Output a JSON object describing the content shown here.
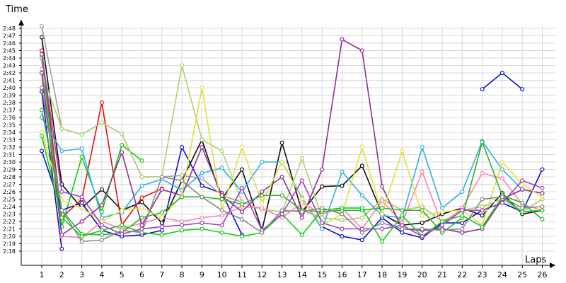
{
  "chart_data": {
    "type": "line",
    "xlabel": "Laps",
    "ylabel": "Time",
    "x": [
      1,
      2,
      3,
      4,
      5,
      6,
      7,
      8,
      9,
      10,
      11,
      12,
      13,
      14,
      15,
      16,
      17,
      18,
      19,
      20,
      21,
      22,
      23,
      24,
      25,
      26
    ],
    "ylim": [
      137,
      169
    ],
    "y_ticks": [
      "2:18",
      "2:19",
      "2:20",
      "2:21",
      "2:22",
      "2:23",
      "2:24",
      "2:25",
      "2:26",
      "2:27",
      "2:28",
      "2:29",
      "2:30",
      "2:31",
      "2:32",
      "2:33",
      "2:34",
      "2:35",
      "2:36",
      "2:37",
      "2:38",
      "2:39",
      "2:40",
      "2:41",
      "2:42",
      "2:43",
      "2:44",
      "2:45",
      "2:46",
      "2:47",
      "2:48"
    ],
    "y_tick_values": [
      138,
      139,
      140,
      141,
      142,
      143,
      144,
      145,
      146,
      147,
      148,
      149,
      150,
      151,
      152,
      153,
      154,
      155,
      156,
      157,
      158,
      159,
      160,
      161,
      162,
      163,
      164,
      165,
      166,
      167,
      168
    ],
    "grid": true,
    "legend": "none",
    "series": [
      {
        "color": "#1010c8",
        "values": [
          159.5,
          138.3,
          null,
          null,
          null,
          null,
          null,
          null,
          null,
          null,
          null,
          null,
          null,
          null,
          null,
          null,
          null,
          null,
          null,
          null,
          null,
          null,
          159.8,
          162.0,
          159.8,
          null
        ]
      },
      {
        "color": "#101010",
        "values": [
          166.8,
          147.0,
          143.8,
          146.3,
          143.5,
          144.6,
          141.8,
          147.5,
          153.0,
          145.0,
          149.0,
          140.8,
          152.6,
          143.3,
          146.7,
          146.8,
          149.5,
          143.0,
          141.5,
          141.8,
          143.0,
          143.8,
          142.8,
          145.8,
          143.0,
          143.5
        ]
      },
      {
        "color": "#e01010",
        "values": [
          165.0,
          142.5,
          145.0,
          158.0,
          141.5,
          145.2,
          146.4,
          null,
          null,
          null,
          null,
          null,
          null,
          null,
          null,
          null,
          null,
          null,
          null,
          null,
          null,
          null,
          null,
          null,
          null,
          null
        ]
      },
      {
        "color": "#10c810",
        "values": [
          164.0,
          141.3,
          150.7,
          143.3,
          152.3,
          150.2,
          null,
          null,
          null,
          null,
          null,
          null,
          null,
          null,
          null,
          null,
          null,
          null,
          null,
          null,
          null,
          null,
          null,
          null,
          null,
          null
        ]
      },
      {
        "color": "#1010c8",
        "values": [
          151.5,
          143.5,
          144.5,
          140.8,
          140.0,
          140.2,
          140.8,
          152.0,
          146.8,
          145.8,
          140.2,
          null,
          null,
          null,
          141.3,
          140.0,
          139.5,
          142.5,
          140.5,
          139.8,
          141.8,
          141.8,
          143.5,
          144.5,
          143.3,
          149.0
        ]
      },
      {
        "color": "#a0a0a0",
        "values": [
          168.3,
          154.5,
          153.7,
          155.3,
          153.8,
          148.0,
          148.0,
          148.2,
          147.8,
          145.5,
          144.6,
          143.6,
          143.3,
          143.5,
          142.5,
          142.2,
          142.5,
          145.0,
          143.5,
          144.0,
          142.0,
          143.5,
          144.0,
          145.0,
          143.3,
          145.0
        ]
      },
      {
        "color": "#b0d070",
        "values": [
          162.0,
          154.5,
          153.7,
          155.3,
          153.8,
          148.0,
          148.0,
          163.0,
          153.0,
          151.5,
          144.6,
          143.6,
          143.3,
          150.5,
          142.5,
          142.2,
          142.5,
          145.0,
          143.5,
          144.0,
          142.0,
          143.5,
          144.0,
          145.0,
          143.3,
          145.0
        ]
      },
      {
        "color": "#30b0e0",
        "values": [
          156.0,
          151.5,
          151.8,
          142.5,
          143.2,
          146.8,
          147.7,
          146.2,
          148.5,
          149.2,
          146.0,
          150.0,
          150.0,
          145.2,
          141.0,
          148.7,
          145.5,
          142.8,
          142.5,
          152.0,
          143.8,
          146.0,
          152.8,
          149.0,
          146.3,
          145.8
        ]
      },
      {
        "color": "#ff80b0",
        "values": [
          162.5,
          140.0,
          139.8,
          142.0,
          141.0,
          141.8,
          142.5,
          142.0,
          142.5,
          142.8,
          144.0,
          143.8,
          142.5,
          144.5,
          143.0,
          143.8,
          141.0,
          144.8,
          141.8,
          148.7,
          141.5,
          143.8,
          148.5,
          147.8,
          144.3,
          143.5
        ]
      },
      {
        "color": "#903090",
        "values": [
          162.0,
          140.2,
          142.0,
          144.2,
          151.3,
          141.5,
          146.3,
          145.5,
          152.0,
          145.5,
          143.3,
          146.0,
          148.0,
          142.5,
          149.0,
          166.5,
          165.0,
          146.7,
          141.0,
          140.8,
          141.0,
          140.5,
          141.0,
          145.0,
          146.3,
          145.8
        ]
      },
      {
        "color": "#e0e040",
        "values": [
          154.0,
          144.8,
          143.8,
          142.0,
          143.5,
          143.8,
          142.5,
          145.5,
          160.0,
          143.5,
          152.0,
          144.5,
          150.0,
          145.0,
          141.5,
          143.0,
          152.0,
          143.0,
          151.5,
          142.8,
          143.3,
          143.5,
          141.5,
          150.0,
          147.0,
          145.3
        ]
      },
      {
        "color": "#30b030",
        "values": [
          157.0,
          143.5,
          140.3,
          140.2,
          140.5,
          142.5,
          143.2,
          145.3,
          145.3,
          145.0,
          144.3,
          145.5,
          145.5,
          143.5,
          143.3,
          143.5,
          143.5,
          143.8,
          143.5,
          143.5,
          140.5,
          142.5,
          152.7,
          145.5,
          144.5,
          142.3
        ]
      },
      {
        "color": "#10d010",
        "values": [
          153.5,
          142.5,
          140.0,
          140.8,
          141.5,
          140.5,
          140.2,
          140.8,
          141.0,
          140.5,
          140.0,
          140.5,
          143.0,
          140.2,
          143.5,
          143.8,
          143.8,
          139.3,
          142.8,
          140.0,
          142.0,
          142.8,
          141.3,
          145.3,
          143.3,
          143.5
        ]
      },
      {
        "color": "#e01010",
        "values": null
      },
      {
        "color": "#a040c0",
        "values": [
          164.5,
          146.0,
          145.3,
          141.5,
          140.3,
          141.0,
          141.3,
          141.5,
          141.8,
          141.5,
          146.5,
          140.8,
          143.0,
          147.5,
          141.8,
          141.0,
          141.0,
          141.0,
          141.5,
          140.0,
          141.5,
          143.5,
          143.5,
          144.5,
          147.5,
          146.5
        ]
      },
      {
        "color": "#888888",
        "values": [
          160.0,
          143.5,
          139.3,
          139.5,
          140.8,
          140.5,
          148.0,
          147.5,
          145.3,
          143.5,
          142.3,
          140.5,
          143.5,
          143.3,
          143.8,
          143.0,
          140.5,
          141.8,
          141.0,
          141.0,
          140.8,
          141.0,
          145.0,
          145.3,
          143.8,
          144.0
        ]
      }
    ]
  }
}
